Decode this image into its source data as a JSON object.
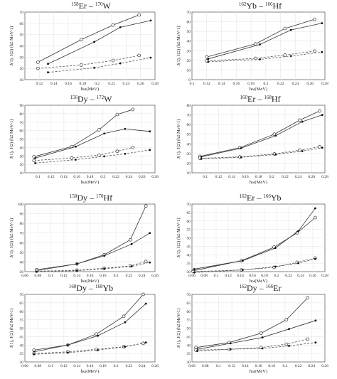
{
  "chart_data": [
    {
      "type": "line",
      "title": {
        "a_mass": "158",
        "a_sym": "Er",
        "sep": "–",
        "b_mass": "170",
        "b_sym": "W"
      },
      "xlabel": "ħω(MeV)",
      "ylabel": "J(1), J(2) (ħ2 MeV-1)",
      "xlim": [
        0.1,
        0.28
      ],
      "ylim": [
        10,
        70
      ],
      "xticks": [
        0.12,
        0.14,
        0.16,
        0.18,
        0.2,
        0.22,
        0.24,
        0.26,
        0.28
      ],
      "xtick_labels": [
        "0.12",
        "0.14",
        "0.16",
        "0.18",
        "0.2",
        "0.22",
        "0.24",
        "0.26",
        "0.28"
      ],
      "yticks": [
        10,
        20,
        30,
        40,
        50,
        60,
        70
      ],
      "grid": true,
      "series": [
        {
          "style": "solid",
          "marker": "open-circle",
          "x": [
            0.118,
            0.178,
            0.222,
            0.258
          ],
          "y": [
            25.5,
            45.5,
            58.5,
            67.5
          ]
        },
        {
          "style": "solid",
          "marker": "filled-dot",
          "x": [
            0.132,
            0.196,
            0.232,
            0.274
          ],
          "y": [
            24.0,
            43.5,
            56.5,
            62.5
          ]
        },
        {
          "style": "dashed",
          "marker": "open-circle",
          "x": [
            0.118,
            0.178,
            0.222,
            0.258
          ],
          "y": [
            20.0,
            23.0,
            27.0,
            31.5
          ]
        },
        {
          "style": "dashed",
          "marker": "filled-dot",
          "x": [
            0.132,
            0.196,
            0.232,
            0.274
          ],
          "y": [
            16.5,
            20.5,
            24.5,
            29.5
          ]
        }
      ]
    },
    {
      "type": "line",
      "title": {
        "a_mass": "162",
        "a_sym": "Yb",
        "sep": "–",
        "b_mass": "166",
        "b_sym": "Hf"
      },
      "xlabel": "ħω(MeV)",
      "ylabel": "J(1), J(2) (ħ2 MeV-1)",
      "xlim": [
        0.1,
        0.28
      ],
      "ylim": [
        0,
        70
      ],
      "xticks": [
        0.1,
        0.12,
        0.14,
        0.16,
        0.18,
        0.2,
        0.22,
        0.24,
        0.26,
        0.28
      ],
      "xtick_labels": [
        "0.1",
        "0.12",
        "0.14",
        "0.16",
        "0.18",
        "0.2",
        "0.22",
        "0.24",
        "0.26",
        "0.28"
      ],
      "yticks": [
        0,
        10,
        20,
        30,
        40,
        50,
        60,
        70
      ],
      "grid": true,
      "series": [
        {
          "style": "solid",
          "marker": "open-circle",
          "x": [
            0.12,
            0.186,
            0.226,
            0.266
          ],
          "y": [
            23.5,
            37.0,
            53.0,
            62.5
          ]
        },
        {
          "style": "solid",
          "marker": "filled-dot",
          "x": [
            0.122,
            0.192,
            0.234,
            0.276
          ],
          "y": [
            21.5,
            36.5,
            51.5,
            58.5
          ]
        },
        {
          "style": "dashed",
          "marker": "open-circle",
          "x": [
            0.12,
            0.186,
            0.226,
            0.266
          ],
          "y": [
            19.5,
            22.0,
            25.5,
            29.5
          ]
        },
        {
          "style": "dashed",
          "marker": "filled-dot",
          "x": [
            0.122,
            0.192,
            0.234,
            0.276
          ],
          "y": [
            18.5,
            21.0,
            24.5,
            28.5
          ]
        }
      ]
    },
    {
      "type": "line",
      "title": {
        "a_mass": "156",
        "a_sym": "Dy",
        "sep": "–",
        "b_mass": "172",
        "b_sym": "W"
      },
      "xlabel": "ħω(MeV)",
      "ylabel": "J(1), J(2) (ħ2 MeV-1)",
      "xlim": [
        0.08,
        0.28
      ],
      "ylim": [
        10,
        90
      ],
      "xticks": [
        0.1,
        0.12,
        0.14,
        0.16,
        0.18,
        0.2,
        0.22,
        0.24,
        0.26,
        0.28
      ],
      "xtick_labels": [
        "0.1",
        "0.12",
        "0.14",
        "0.16",
        "0.18",
        "0.2",
        "0.22",
        "0.24",
        "0.26",
        "0.28"
      ],
      "yticks": [
        10,
        20,
        30,
        40,
        50,
        60,
        70,
        80,
        90
      ],
      "grid": true,
      "series": [
        {
          "style": "solid",
          "marker": "open-circle",
          "x": [
            0.094,
            0.152,
            0.194,
            0.222,
            0.246
          ],
          "y": [
            29.0,
            41.0,
            61.0,
            79.0,
            85.0
          ]
        },
        {
          "style": "solid",
          "marker": "filled-dot",
          "x": [
            0.096,
            0.158,
            0.202,
            0.234,
            0.272
          ],
          "y": [
            27.5,
            41.0,
            56.5,
            62.0,
            59.0
          ]
        },
        {
          "style": "dashed",
          "marker": "open-circle",
          "x": [
            0.094,
            0.152,
            0.194,
            0.222,
            0.246
          ],
          "y": [
            24.5,
            27.5,
            31.0,
            35.5,
            40.0
          ]
        },
        {
          "style": "dashed",
          "marker": "filled-dot",
          "x": [
            0.096,
            0.158,
            0.202,
            0.234,
            0.272
          ],
          "y": [
            21.5,
            25.5,
            29.5,
            32.5,
            37.0
          ]
        }
      ]
    },
    {
      "type": "line",
      "title": {
        "a_mass": "160",
        "a_sym": "Er",
        "sep": "–",
        "b_mass": "168",
        "b_sym": "Hf"
      },
      "xlabel": "ħω(MeV)",
      "ylabel": "J(1), J(2) (ħ2 MeV-1)",
      "xlim": [
        0.08,
        0.28
      ],
      "ylim": [
        10,
        80
      ],
      "xticks": [
        0.1,
        0.12,
        0.14,
        0.16,
        0.18,
        0.2,
        0.22,
        0.24,
        0.26,
        0.28
      ],
      "xtick_labels": [
        "0.1",
        "0.12",
        "0.14",
        "0.16",
        "0.18",
        "0.2",
        "0.22",
        "0.24",
        "0.26",
        "0.28"
      ],
      "yticks": [
        10,
        20,
        30,
        40,
        50,
        60,
        70,
        80
      ],
      "grid": true,
      "series": [
        {
          "style": "solid",
          "marker": "open-circle",
          "x": [
            0.092,
            0.152,
            0.204,
            0.242,
            0.272
          ],
          "y": [
            27.0,
            36.0,
            50.0,
            64.5,
            74.0
          ]
        },
        {
          "style": "solid",
          "marker": "filled-dot",
          "x": [
            0.094,
            0.154,
            0.206,
            0.246,
            0.276
          ],
          "y": [
            26.5,
            35.5,
            48.5,
            63.0,
            70.0
          ]
        },
        {
          "style": "dashed",
          "marker": "open-circle",
          "x": [
            0.092,
            0.152,
            0.204,
            0.242,
            0.272
          ],
          "y": [
            25.0,
            26.5,
            29.5,
            33.5,
            37.0
          ]
        },
        {
          "style": "dashed",
          "marker": "filled-dot",
          "x": [
            0.094,
            0.154,
            0.206,
            0.246,
            0.276
          ],
          "y": [
            24.5,
            26.0,
            29.0,
            32.5,
            36.0
          ]
        }
      ]
    },
    {
      "type": "line",
      "title": {
        "a_mass": "158",
        "a_sym": "Dy",
        "sep": "–",
        "b_mass": "170",
        "b_sym": "Hf"
      },
      "xlabel": "ħω(MeV)",
      "ylabel": "J(1), J(2) (ħ2 MeV-1)",
      "xlim": [
        0.06,
        0.26
      ],
      "ylim": [
        30,
        100
      ],
      "xticks": [
        0.06,
        0.08,
        0.1,
        0.12,
        0.14,
        0.16,
        0.18,
        0.2,
        0.22,
        0.24,
        0.26
      ],
      "xtick_labels": [
        "0.06",
        "0.08",
        "0.1",
        "0.12",
        "0.14",
        "0.16",
        "0.18",
        "0.2",
        "0.22",
        "0.24",
        "0.26"
      ],
      "yticks": [
        30,
        40,
        50,
        60,
        70,
        80,
        90,
        100
      ],
      "grid": true,
      "series": [
        {
          "style": "solid",
          "marker": "open-circle",
          "x": [
            0.078,
            0.14,
            0.182,
            0.222,
            0.246
          ],
          "y": [
            32.0,
            38.0,
            47.5,
            63.0,
            98.0
          ]
        },
        {
          "style": "solid",
          "marker": "filled-dot",
          "x": [
            0.078,
            0.14,
            0.182,
            0.224,
            0.252
          ],
          "y": [
            31.0,
            38.0,
            46.5,
            58.5,
            70.0
          ]
        },
        {
          "style": "dashed",
          "marker": "open-circle",
          "x": [
            0.078,
            0.14,
            0.182,
            0.222,
            0.246
          ],
          "y": [
            30.5,
            31.5,
            33.5,
            36.0,
            40.5
          ]
        },
        {
          "style": "dashed",
          "marker": "filled-dot",
          "x": [
            0.078,
            0.14,
            0.182,
            0.224,
            0.252
          ],
          "y": [
            30.0,
            31.0,
            33.0,
            35.5,
            39.5
          ]
        }
      ]
    },
    {
      "type": "line",
      "title": {
        "a_mass": "162",
        "a_sym": "Er",
        "sep": "–",
        "b_mass": "166",
        "b_sym": "Yb"
      },
      "xlabel": "ħω(MeV)",
      "ylabel": "J(1), J(2) (ħ2 MeV-1)",
      "xlim": [
        0.06,
        0.28
      ],
      "ylim": [
        30,
        70
      ],
      "xticks": [
        0.06,
        0.08,
        0.1,
        0.12,
        0.14,
        0.16,
        0.18,
        0.2,
        0.22,
        0.24,
        0.26,
        0.28
      ],
      "xtick_labels": [
        "0.06",
        "0.08",
        "0.1",
        "0.12",
        "0.14",
        "0.16",
        "0.18",
        "0.2",
        "0.22",
        "0.24",
        "0.26",
        "0.28"
      ],
      "yticks": [
        30,
        35,
        40,
        45,
        50,
        55,
        60,
        65,
        70
      ],
      "grid": true,
      "series": [
        {
          "style": "solid",
          "marker": "open-circle",
          "x": [
            0.062,
            0.142,
            0.196,
            0.234,
            0.264
          ],
          "y": [
            30.5,
            36.5,
            44.5,
            53.0,
            62.0
          ]
        },
        {
          "style": "solid",
          "marker": "filled-dot",
          "x": [
            0.064,
            0.144,
            0.198,
            0.236,
            0.264
          ],
          "y": [
            31.5,
            36.5,
            44.0,
            54.0,
            67.5
          ]
        },
        {
          "style": "dashed",
          "marker": "open-circle",
          "x": [
            0.062,
            0.142,
            0.196,
            0.234,
            0.264
          ],
          "y": [
            30.0,
            31.0,
            32.5,
            35.5,
            38.0
          ]
        },
        {
          "style": "dashed",
          "marker": "filled-dot",
          "x": [
            0.064,
            0.144,
            0.198,
            0.236,
            0.264
          ],
          "y": [
            29.5,
            31.0,
            33.0,
            35.0,
            37.5
          ]
        }
      ]
    },
    {
      "type": "line",
      "title": {
        "a_mass": "160",
        "a_sym": "Dy",
        "sep": "–",
        "b_mass": "168",
        "b_sym": "Yb"
      },
      "xlabel": "ħω(MeV)",
      "ylabel": "J(1), J(2) (ħ2 MeV-1)",
      "xlim": [
        0.06,
        0.26
      ],
      "ylim": [
        30,
        70
      ],
      "xticks": [
        0.06,
        0.08,
        0.1,
        0.12,
        0.14,
        0.16,
        0.18,
        0.2,
        0.22,
        0.24,
        0.26
      ],
      "xtick_labels": [
        "0.06",
        "0.08",
        "0.1",
        "0.12",
        "0.14",
        "0.16",
        "0.18",
        "0.2",
        "0.22",
        "0.24",
        "0.26"
      ],
      "yticks": [
        30,
        35,
        40,
        45,
        50,
        55,
        60,
        65,
        70
      ],
      "grid": true,
      "series": [
        {
          "style": "solid",
          "marker": "open-circle",
          "x": [
            0.074,
            0.126,
            0.17,
            0.212,
            0.242
          ],
          "y": [
            37.0,
            40.0,
            46.5,
            57.0,
            70.0
          ]
        },
        {
          "style": "solid",
          "marker": "filled-dot",
          "x": [
            0.074,
            0.126,
            0.172,
            0.214,
            0.246
          ],
          "y": [
            36.0,
            40.0,
            45.5,
            53.5,
            64.5
          ]
        },
        {
          "style": "dashed",
          "marker": "open-circle",
          "x": [
            0.074,
            0.126,
            0.17,
            0.212,
            0.242
          ],
          "y": [
            35.0,
            36.0,
            37.5,
            39.0,
            41.0
          ]
        },
        {
          "style": "dashed",
          "marker": "filled-dot",
          "x": [
            0.074,
            0.126,
            0.172,
            0.214,
            0.246
          ],
          "y": [
            34.5,
            35.5,
            37.0,
            39.0,
            41.5
          ]
        }
      ]
    },
    {
      "type": "line",
      "title": {
        "a_mass": "162",
        "a_sym": "Dy",
        "sep": "–",
        "b_mass": "166",
        "b_sym": "Er"
      },
      "xlabel": "ħω(MeV)",
      "ylabel": "J(1), J(2) (ħ2 MeV-1)",
      "xlim": [
        0.06,
        0.26
      ],
      "ylim": [
        30,
        70
      ],
      "xticks": [
        0.06,
        0.08,
        0.1,
        0.12,
        0.14,
        0.16,
        0.18,
        0.2,
        0.22,
        0.24,
        0.26
      ],
      "xtick_labels": [
        "0.06",
        "0.08",
        "0.1",
        "0.12",
        "0.14",
        "0.16",
        "0.18",
        "0.2",
        "0.22",
        "0.24",
        "0.26"
      ],
      "yticks": [
        30,
        35,
        40,
        45,
        50,
        55,
        60,
        65,
        70
      ],
      "grid": true,
      "series": [
        {
          "style": "solid",
          "marker": "open-circle",
          "x": [
            0.066,
            0.116,
            0.164,
            0.202,
            0.234
          ],
          "y": [
            38.5,
            41.5,
            47.0,
            55.0,
            68.0
          ]
        },
        {
          "style": "solid",
          "marker": "filled-dot",
          "x": [
            0.068,
            0.118,
            0.166,
            0.206,
            0.246
          ],
          "y": [
            37.5,
            41.0,
            44.5,
            49.5,
            54.5
          ]
        },
        {
          "style": "dashed",
          "marker": "open-circle",
          "x": [
            0.066,
            0.116,
            0.164,
            0.202,
            0.234
          ],
          "y": [
            37.0,
            37.5,
            38.5,
            40.5,
            43.5
          ]
        },
        {
          "style": "dashed",
          "marker": "filled-dot",
          "x": [
            0.068,
            0.118,
            0.166,
            0.206,
            0.246
          ],
          "y": [
            36.5,
            37.5,
            38.0,
            39.5,
            41.5
          ]
        }
      ]
    }
  ]
}
